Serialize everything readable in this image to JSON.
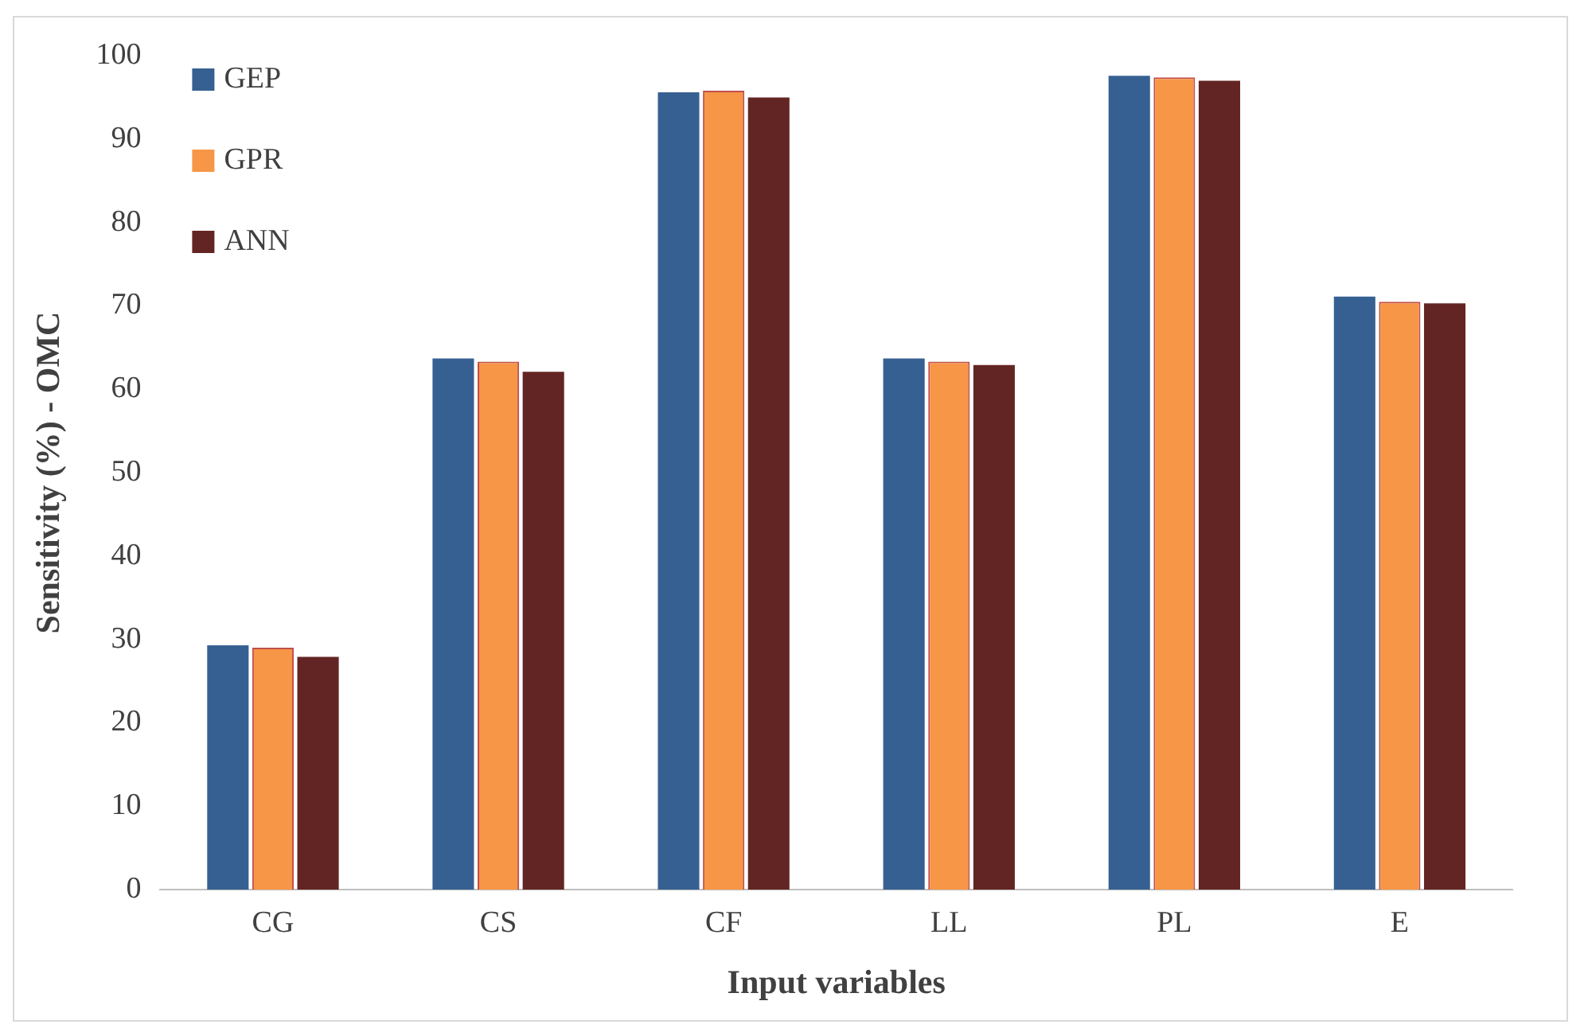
{
  "chart_data": {
    "type": "bar",
    "xlabel": "Input variables",
    "ylabel": "Sensitivity (%) - OMC",
    "categories": [
      "CG",
      "CS",
      "CF",
      "LL",
      "PL",
      "E"
    ],
    "series": [
      {
        "name": "GEP",
        "color": "#376092",
        "values": [
          29.3,
          63.7,
          95.6,
          63.7,
          97.6,
          71.1
        ]
      },
      {
        "name": "GPR",
        "color": "#f79646",
        "values": [
          29.0,
          63.3,
          95.8,
          63.3,
          97.4,
          70.5
        ]
      },
      {
        "name": "ANN",
        "color": "#632523",
        "values": [
          27.9,
          62.1,
          95.0,
          62.9,
          97.0,
          70.3
        ]
      }
    ],
    "ylim": [
      0,
      100
    ],
    "yticks": [
      0,
      10,
      20,
      30,
      40,
      50,
      60,
      70,
      80,
      90,
      100
    ],
    "grid": false,
    "legend": "top left"
  }
}
